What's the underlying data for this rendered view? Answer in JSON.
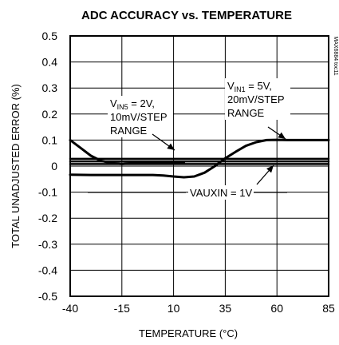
{
  "chart_data": {
    "type": "line",
    "title": "ADC ACCURACY vs. TEMPERATURE",
    "xlabel": "TEMPERATURE (°C)",
    "ylabel": "TOTAL UNADJUSTED ERROR (%)",
    "xlim": [
      -40,
      85
    ],
    "ylim": [
      -0.5,
      0.5
    ],
    "x_ticks": [
      -40,
      -15,
      10,
      35,
      60,
      85
    ],
    "y_ticks": [
      -0.5,
      -0.4,
      -0.3,
      -0.2,
      -0.1,
      0,
      0.1,
      0.2,
      0.3,
      0.4,
      0.5
    ],
    "grid": true,
    "watermark": "MAX6884 toc11",
    "series": [
      {
        "points": [
          [
            -40,
            0.028
          ],
          [
            -20,
            0.028
          ],
          [
            0,
            0.028
          ],
          [
            20,
            0.028
          ],
          [
            40,
            0.028
          ],
          [
            60,
            0.028
          ],
          [
            85,
            0.028
          ]
        ]
      },
      {
        "points": [
          [
            -40,
            0.018
          ],
          [
            -20,
            0.018
          ],
          [
            0,
            0.018
          ],
          [
            20,
            0.018
          ],
          [
            40,
            0.018
          ],
          [
            60,
            0.018
          ],
          [
            85,
            0.018
          ]
        ]
      },
      {
        "points": [
          [
            -40,
            0.1
          ],
          [
            -35,
            0.07
          ],
          [
            -30,
            0.04
          ],
          [
            -25,
            0.02
          ],
          [
            -20,
            0.012
          ],
          [
            -15,
            0.008
          ],
          [
            -10,
            0.012
          ],
          [
            -5,
            0.015
          ],
          [
            0,
            0.015
          ],
          [
            5,
            0.014
          ],
          [
            10,
            0.013
          ],
          [
            15,
            0.012
          ]
        ]
      },
      {
        "points": [
          [
            -40,
            -0.033
          ],
          [
            -30,
            -0.034
          ],
          [
            -20,
            -0.034
          ],
          [
            -10,
            -0.034
          ],
          [
            0,
            -0.034
          ],
          [
            5,
            -0.036
          ],
          [
            10,
            -0.04
          ],
          [
            15,
            -0.043
          ],
          [
            20,
            -0.04
          ],
          [
            25,
            -0.025
          ],
          [
            30,
            0.0
          ],
          [
            35,
            0.03
          ],
          [
            40,
            0.055
          ],
          [
            45,
            0.078
          ],
          [
            50,
            0.092
          ],
          [
            55,
            0.1
          ],
          [
            60,
            0.101
          ],
          [
            65,
            0.1
          ],
          [
            70,
            0.1
          ],
          [
            75,
            0.1
          ],
          [
            85,
            0.1
          ]
        ]
      },
      {
        "points": [
          [
            -40,
            0.008
          ],
          [
            -20,
            0.008
          ],
          [
            0,
            0.008
          ],
          [
            20,
            0.008
          ],
          [
            40,
            0.008
          ],
          [
            60,
            0.008
          ],
          [
            85,
            0.008
          ]
        ]
      }
    ],
    "annotations": [
      {
        "id": "vin5",
        "line1_main": "V",
        "line1_sub": "IN5",
        "line1_rest": " = 2V,",
        "line2": "10mV/STEP",
        "line3": "RANGE"
      },
      {
        "id": "vin1",
        "line1_main": "V",
        "line1_sub": "IN1",
        "line1_rest": " = 5V,",
        "line2": "20mV/STEP",
        "line3": "RANGE"
      },
      {
        "id": "vauxin",
        "text": "VAUXIN = 1V"
      }
    ]
  }
}
